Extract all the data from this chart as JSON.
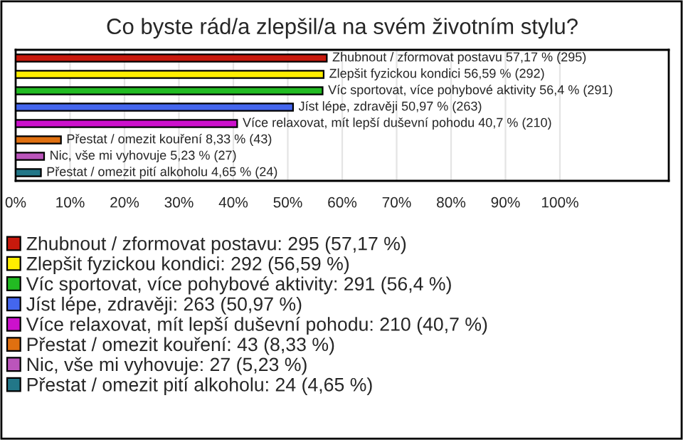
{
  "chart_data": {
    "type": "bar",
    "orientation": "horizontal",
    "stacked": true,
    "title": "Co byste rád/a zlepšil/a na svém životním stylu?",
    "categories": [
      "Zhubnout / zformovat postavu",
      "Zlepšit fyzickou kondici",
      "Víc sportovat, více pohybové aktivity",
      "Jíst lépe, zdravěji",
      "Více relaxovat, mít lepší duševní pohodu",
      "Přestat / omezit kouření",
      "Nic, vše mi vyhovuje",
      "Přestat / omezit pití alkoholu"
    ],
    "series": [
      {
        "name": "Zhubnout / zformovat postavu: 295 (57,17 %)",
        "color": "#c8190c",
        "values": [
          57.17,
          null,
          null,
          null,
          null,
          null,
          null,
          null
        ],
        "value_labels": [
          "57,17 % (295)",
          null,
          null,
          null,
          null,
          null,
          null,
          null
        ]
      },
      {
        "name": "Zlepšit fyzickou kondici: 292 (56,59 %)",
        "color": "#ffee00",
        "values": [
          null,
          56.59,
          null,
          null,
          null,
          null,
          null,
          null
        ],
        "value_labels": [
          null,
          "56,59 % (292)",
          null,
          null,
          null,
          null,
          null,
          null
        ]
      },
      {
        "name": "Víc sportovat, více pohybové aktivity: 291 (56,4 %)",
        "color": "#22bb22",
        "values": [
          null,
          null,
          56.4,
          null,
          null,
          null,
          null,
          null
        ],
        "value_labels": [
          null,
          null,
          "56,4 % (291)",
          null,
          null,
          null,
          null,
          null
        ]
      },
      {
        "name": "Jíst lépe, zdravěji: 263 (50,97 %)",
        "color": "#4466ee",
        "values": [
          null,
          null,
          null,
          50.97,
          null,
          null,
          null,
          null
        ],
        "value_labels": [
          null,
          null,
          null,
          "50,97 % (263)",
          null,
          null,
          null,
          null
        ]
      },
      {
        "name": "Více relaxovat, mít lepší duševní pohodu: 210 (40,7 %)",
        "color": "#cc11cc",
        "values": [
          null,
          null,
          null,
          null,
          40.7,
          null,
          null,
          null
        ],
        "value_labels": [
          null,
          null,
          null,
          null,
          "40,7 % (210)",
          null,
          null,
          null
        ]
      },
      {
        "name": "Přestat / omezit kouření: 43 (8,33 %)",
        "color": "#e07010",
        "values": [
          null,
          null,
          null,
          null,
          null,
          8.33,
          null,
          null
        ],
        "value_labels": [
          null,
          null,
          null,
          null,
          null,
          "8,33 % (43)",
          null,
          null
        ]
      },
      {
        "name": "Nic, vše mi vyhovuje: 27 (5,23 %)",
        "color": "#bb55bb",
        "values": [
          null,
          null,
          null,
          null,
          null,
          null,
          5.23,
          null
        ],
        "value_labels": [
          null,
          null,
          null,
          null,
          null,
          null,
          "5,23 % (27)",
          null
        ]
      },
      {
        "name": "Přestat / omezit pití alkoholu: 24 (4,65 %)",
        "color": "#227788",
        "values": [
          null,
          null,
          null,
          null,
          null,
          null,
          null,
          4.65
        ],
        "value_labels": [
          null,
          null,
          null,
          null,
          null,
          null,
          null,
          "4,65 % (24)"
        ]
      }
    ],
    "xlim": [
      0,
      120
    ],
    "xticks": [
      {
        "value": 0,
        "label": "0%"
      },
      {
        "value": 10,
        "label": "10%"
      },
      {
        "value": 20,
        "label": "20%"
      },
      {
        "value": 30,
        "label": "30%"
      },
      {
        "value": 40,
        "label": "40%"
      },
      {
        "value": 50,
        "label": "50%"
      },
      {
        "value": 60,
        "label": "60%"
      },
      {
        "value": 70,
        "label": "70%"
      },
      {
        "value": 80,
        "label": "80%"
      },
      {
        "value": 90,
        "label": "90%"
      },
      {
        "value": 100,
        "label": "100%"
      }
    ],
    "grid": "x",
    "legend": "bottom"
  }
}
